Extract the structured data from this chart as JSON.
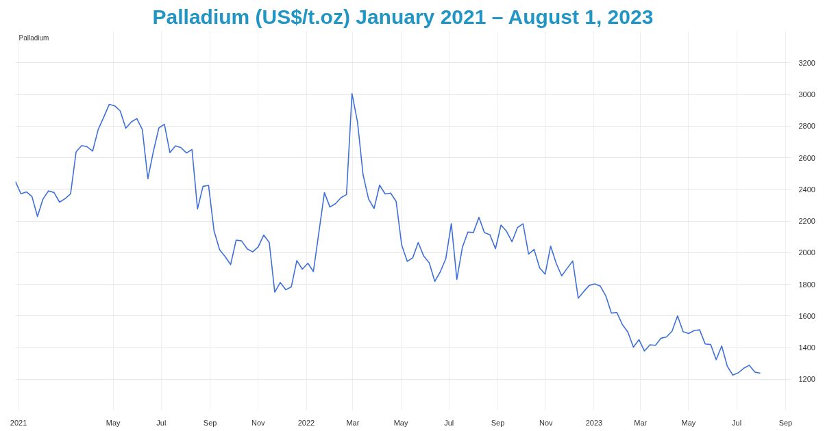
{
  "chart_data": {
    "type": "line",
    "title": "Palladium (US$/t.oz) January 2021 – August 1, 2023",
    "x": [
      "2020-12-28",
      "2021-01-04",
      "2021-01-11",
      "2021-01-18",
      "2021-01-25",
      "2021-02-01",
      "2021-02-08",
      "2021-02-15",
      "2021-02-22",
      "2021-03-01",
      "2021-03-08",
      "2021-03-15",
      "2021-03-22",
      "2021-03-29",
      "2021-04-05",
      "2021-04-12",
      "2021-04-19",
      "2021-04-26",
      "2021-05-03",
      "2021-05-10",
      "2021-05-17",
      "2021-05-24",
      "2021-05-31",
      "2021-06-07",
      "2021-06-14",
      "2021-06-21",
      "2021-06-28",
      "2021-07-05",
      "2021-07-12",
      "2021-07-19",
      "2021-07-26",
      "2021-08-02",
      "2021-08-09",
      "2021-08-16",
      "2021-08-23",
      "2021-08-30",
      "2021-09-06",
      "2021-09-13",
      "2021-09-20",
      "2021-09-27",
      "2021-10-04",
      "2021-10-11",
      "2021-10-18",
      "2021-10-25",
      "2021-11-01",
      "2021-11-08",
      "2021-11-15",
      "2021-11-22",
      "2021-11-29",
      "2021-12-06",
      "2021-12-13",
      "2021-12-20",
      "2021-12-27",
      "2022-01-03",
      "2022-01-10",
      "2022-01-17",
      "2022-01-24",
      "2022-01-31",
      "2022-02-07",
      "2022-02-14",
      "2022-02-21",
      "2022-02-28",
      "2022-03-07",
      "2022-03-14",
      "2022-03-21",
      "2022-03-28",
      "2022-04-04",
      "2022-04-11",
      "2022-04-18",
      "2022-04-25",
      "2022-05-02",
      "2022-05-09",
      "2022-05-16",
      "2022-05-23",
      "2022-05-30",
      "2022-06-06",
      "2022-06-13",
      "2022-06-20",
      "2022-06-27",
      "2022-07-04",
      "2022-07-11",
      "2022-07-18",
      "2022-07-25",
      "2022-08-01",
      "2022-08-08",
      "2022-08-15",
      "2022-08-22",
      "2022-08-29",
      "2022-09-05",
      "2022-09-12",
      "2022-09-19",
      "2022-09-26",
      "2022-10-03",
      "2022-10-10",
      "2022-10-17",
      "2022-10-24",
      "2022-10-31",
      "2022-11-07",
      "2022-11-14",
      "2022-11-21",
      "2022-11-28",
      "2022-12-05",
      "2022-12-12",
      "2022-12-19",
      "2022-12-26",
      "2023-01-02",
      "2023-01-09",
      "2023-01-16",
      "2023-01-23",
      "2023-01-30",
      "2023-02-06",
      "2023-02-13",
      "2023-02-20",
      "2023-02-27",
      "2023-03-06",
      "2023-03-13",
      "2023-03-20",
      "2023-03-27",
      "2023-04-03",
      "2023-04-10",
      "2023-04-17",
      "2023-04-24",
      "2023-05-01",
      "2023-05-08",
      "2023-05-15",
      "2023-05-22",
      "2023-05-29",
      "2023-06-05",
      "2023-06-12",
      "2023-06-19",
      "2023-06-26",
      "2023-07-03",
      "2023-07-10",
      "2023-07-17",
      "2023-07-24",
      "2023-07-31"
    ],
    "series": [
      {
        "name": "Palladium",
        "color": "#3f6fd8",
        "values": [
          2449,
          2372,
          2384,
          2354,
          2228,
          2339,
          2390,
          2380,
          2319,
          2341,
          2372,
          2637,
          2677,
          2669,
          2642,
          2778,
          2856,
          2937,
          2928,
          2895,
          2786,
          2826,
          2847,
          2778,
          2467,
          2639,
          2788,
          2811,
          2632,
          2675,
          2664,
          2630,
          2652,
          2276,
          2419,
          2425,
          2137,
          2018,
          1975,
          1924,
          2079,
          2074,
          2024,
          2005,
          2036,
          2111,
          2064,
          1750,
          1811,
          1765,
          1784,
          1950,
          1895,
          1933,
          1880,
          2129,
          2379,
          2288,
          2309,
          2347,
          2367,
          3005,
          2824,
          2493,
          2339,
          2279,
          2427,
          2371,
          2376,
          2323,
          2049,
          1945,
          1967,
          2064,
          1978,
          1935,
          1818,
          1879,
          1962,
          2183,
          1831,
          2033,
          2130,
          2127,
          2223,
          2126,
          2112,
          2025,
          2174,
          2135,
          2069,
          2159,
          2182,
          1991,
          2020,
          1904,
          1864,
          2041,
          1933,
          1853,
          1901,
          1947,
          1712,
          1754,
          1793,
          1802,
          1788,
          1726,
          1618,
          1621,
          1545,
          1497,
          1402,
          1450,
          1378,
          1417,
          1414,
          1459,
          1467,
          1504,
          1600,
          1501,
          1489,
          1507,
          1512,
          1423,
          1419,
          1323,
          1410,
          1283,
          1226,
          1240,
          1269,
          1288,
          1245,
          1238
        ]
      }
    ],
    "xlim": [
      "2020-12-28",
      "2023-09-08"
    ],
    "xticks": [
      {
        "value": "2021-01",
        "label": "2021"
      },
      {
        "value": "2021-05",
        "label": "May"
      },
      {
        "value": "2021-07",
        "label": "Jul"
      },
      {
        "value": "2021-09",
        "label": "Sep"
      },
      {
        "value": "2021-11",
        "label": "Nov"
      },
      {
        "value": "2022-01",
        "label": "2022"
      },
      {
        "value": "2022-03",
        "label": "Mar"
      },
      {
        "value": "2022-05",
        "label": "May"
      },
      {
        "value": "2022-07",
        "label": "Jul"
      },
      {
        "value": "2022-09",
        "label": "Sep"
      },
      {
        "value": "2022-11",
        "label": "Nov"
      },
      {
        "value": "2023-01",
        "label": "2023"
      },
      {
        "value": "2023-03",
        "label": "Mar"
      },
      {
        "value": "2023-05",
        "label": "May"
      },
      {
        "value": "2023-07",
        "label": "Jul"
      },
      {
        "value": "2023-09",
        "label": "Sep"
      }
    ],
    "ylim": [
      1000,
      3400
    ],
    "yticks": [
      1200,
      1400,
      1600,
      1800,
      2000,
      2200,
      2400,
      2600,
      2800,
      3000,
      3200
    ],
    "grid": true,
    "marker": "none",
    "line_style": "solid"
  }
}
